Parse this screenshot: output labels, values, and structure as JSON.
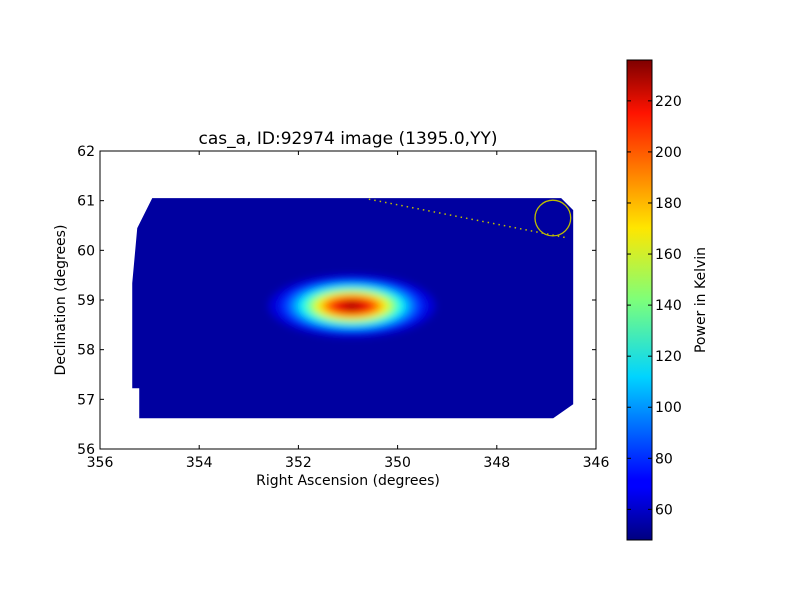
{
  "chart_data": {
    "type": "heatmap",
    "title": "cas_a, ID:92974 image (1395.0,YY)",
    "xlabel": "Right Ascension (degrees)",
    "ylabel": "Declination (degrees)",
    "xlim": [
      356,
      346
    ],
    "ylim": [
      56,
      62
    ],
    "xticks": [
      356,
      354,
      352,
      350,
      348,
      346
    ],
    "yticks": [
      56,
      57,
      58,
      59,
      60,
      61,
      62
    ],
    "image_extent": {
      "ra": [
        355.35,
        346.46
      ],
      "dec": [
        56.62,
        61.05
      ]
    },
    "background_value": 50,
    "source": {
      "ra": 350.92,
      "dec": 58.88,
      "peak": 236,
      "sigma_ra": 0.75,
      "sigma_dec": 0.28
    },
    "marker_circle": {
      "ra": 346.87,
      "dec": 60.65,
      "radius_deg": 0.36,
      "color": "#bfbf00"
    },
    "dotted_line": {
      "from": [
        350.58,
        61.03
      ],
      "to": [
        346.58,
        60.25
      ],
      "color": "#bfbf00"
    },
    "colorbar": {
      "label": "Power in Kelvin",
      "range": [
        48,
        236
      ],
      "ticks": [
        60,
        80,
        100,
        120,
        140,
        160,
        180,
        200,
        220
      ],
      "colormap": "jet"
    }
  }
}
